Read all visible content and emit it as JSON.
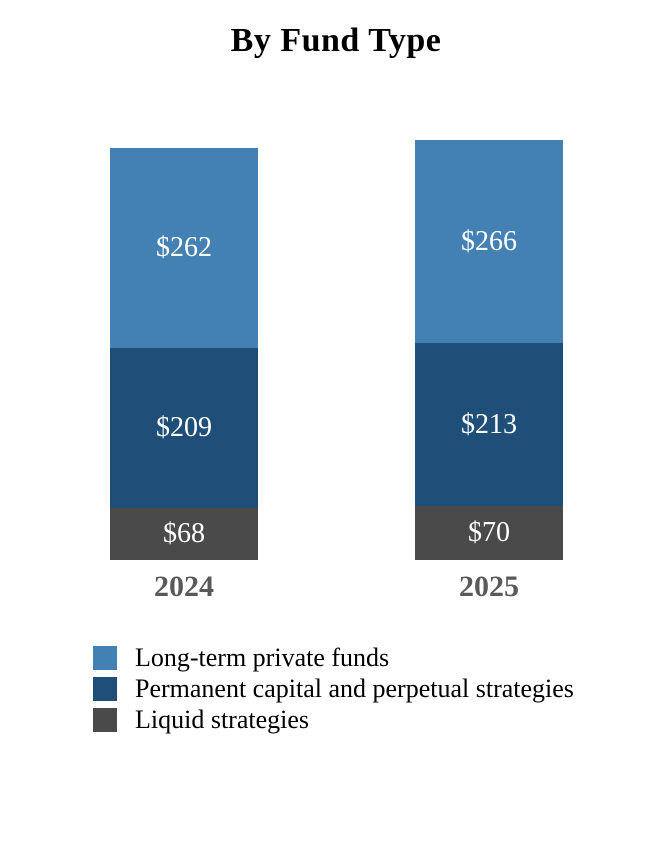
{
  "chart_data": {
    "type": "bar",
    "stacked": true,
    "title": "By Fund Type",
    "categories": [
      "2024",
      "2025"
    ],
    "series": [
      {
        "name": "Long-term private funds",
        "color": "#4381B4",
        "values": [
          262,
          266
        ],
        "labels": [
          "$262",
          "$266"
        ]
      },
      {
        "name": "Permanent capital and perpetual strategies",
        "color": "#1F4E79",
        "values": [
          209,
          213
        ],
        "labels": [
          "$209",
          "$213"
        ]
      },
      {
        "name": "Liquid strategies",
        "color": "#4A4A4A",
        "values": [
          68,
          70
        ],
        "labels": [
          "$68",
          "$70"
        ]
      }
    ],
    "value_prefix": "$",
    "totals": [
      539,
      549
    ],
    "grid": false,
    "y_axis_visible": false,
    "legend_position": "bottom-left"
  },
  "styles": {
    "background": "#FFFFFF",
    "title_color": "#000000",
    "value_label_color": "#FFFFFF",
    "category_label_color": "#595959",
    "legend_text_color": "#000000"
  }
}
